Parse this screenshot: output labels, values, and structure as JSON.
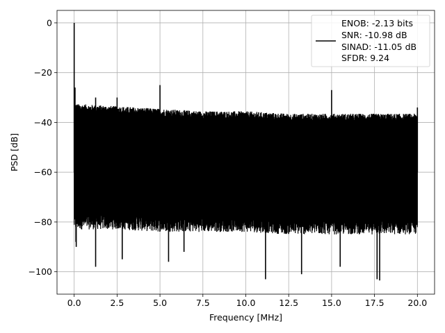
{
  "chart_data": {
    "type": "line",
    "xlabel": "Frequency [MHz]",
    "ylabel": "PSD [dB]",
    "xlim": [
      -1.0,
      21.0
    ],
    "ylim": [
      -109.0,
      5.0
    ],
    "x_ticks": [
      0.0,
      2.5,
      5.0,
      7.5,
      10.0,
      12.5,
      15.0,
      17.5,
      20.0
    ],
    "x_tick_labels": [
      "0.0",
      "2.5",
      "5.0",
      "7.5",
      "10.0",
      "12.5",
      "15.0",
      "17.5",
      "20.0"
    ],
    "y_ticks": [
      0,
      -20,
      -40,
      -60,
      -80,
      -100
    ],
    "y_tick_labels": [
      "0",
      "−20",
      "−40",
      "−60",
      "−80",
      "−100"
    ],
    "grid": true,
    "legend_position": "top-right",
    "line_color": "#000000",
    "legend_lines": [
      "ENOB: -2.13 bits",
      "SNR: -10.98 dB",
      "SINAD: -11.05 dB",
      "SFDR: 9.24"
    ],
    "series": [
      {
        "noise_band": {
          "x": [
            0.0,
            2.5,
            5.0,
            7.5,
            10.0,
            12.5,
            15.0,
            17.5,
            20.0
          ],
          "upper": [
            -34,
            -35,
            -36,
            -37,
            -37,
            -38,
            -38,
            -38,
            -38
          ],
          "lower": [
            -80,
            -80,
            -81,
            -81,
            -81,
            -82,
            -82,
            -82,
            -82
          ]
        },
        "peaks": [
          {
            "x": 0.0,
            "y": 0
          },
          {
            "x": 0.05,
            "y": -26
          },
          {
            "x": 1.25,
            "y": -30
          },
          {
            "x": 2.5,
            "y": -30
          },
          {
            "x": 5.0,
            "y": -25
          },
          {
            "x": 15.0,
            "y": -27
          },
          {
            "x": 20.0,
            "y": -34
          }
        ],
        "dips": [
          {
            "x": 0.1,
            "y": -88
          },
          {
            "x": 0.12,
            "y": -90
          },
          {
            "x": 1.25,
            "y": -98
          },
          {
            "x": 2.8,
            "y": -95
          },
          {
            "x": 5.5,
            "y": -96
          },
          {
            "x": 6.4,
            "y": -92
          },
          {
            "x": 11.15,
            "y": -103
          },
          {
            "x": 13.25,
            "y": -101
          },
          {
            "x": 15.5,
            "y": -98
          },
          {
            "x": 17.65,
            "y": -103
          },
          {
            "x": 17.8,
            "y": -103.5
          }
        ]
      }
    ]
  }
}
